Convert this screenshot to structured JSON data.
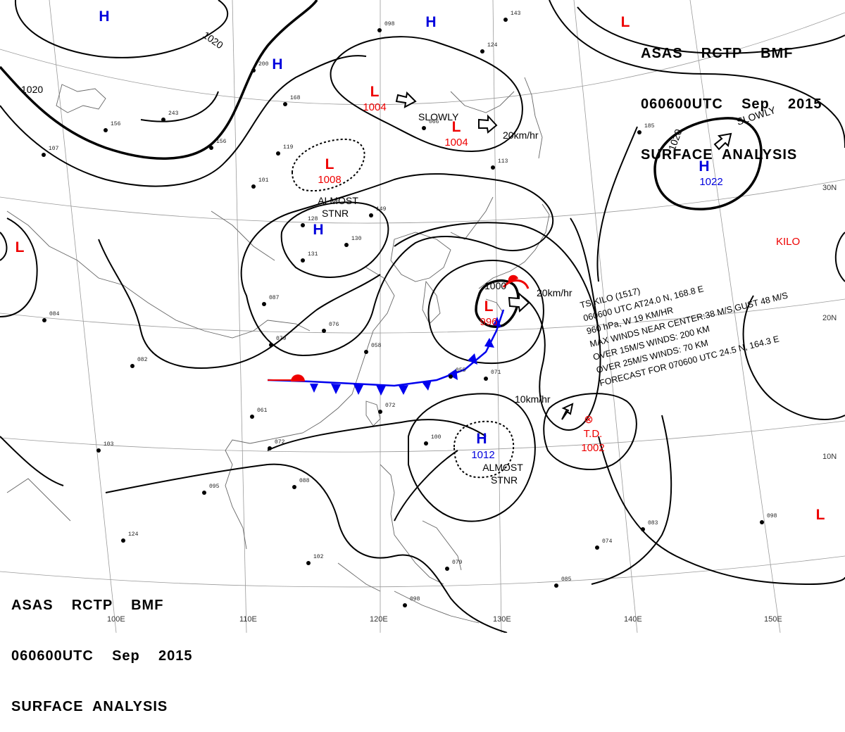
{
  "header": {
    "line1": "ASAS    RCTP    BMF",
    "line2": "060600UTC    Sep    2015",
    "line3": "SURFACE  ANALYSIS"
  },
  "longitude_labels": [
    "100E",
    "110E",
    "120E",
    "130E",
    "140E",
    "150E"
  ],
  "latitude_labels": [
    "30N",
    "20N",
    "10N"
  ],
  "isobar_labels": [
    "1020",
    "1020",
    "1020",
    "1000"
  ],
  "pressure_centers": [
    {
      "type": "H",
      "value": ""
    },
    {
      "type": "H",
      "value": ""
    },
    {
      "type": "H",
      "value": ""
    },
    {
      "type": "L",
      "value": "1004"
    },
    {
      "type": "L",
      "value": "1004"
    },
    {
      "type": "L",
      "value": "1008"
    },
    {
      "type": "H",
      "value": ""
    },
    {
      "type": "H",
      "value": "1022"
    },
    {
      "type": "L",
      "value": ""
    },
    {
      "type": "L",
      "value": ""
    },
    {
      "type": "L",
      "value": "996"
    },
    {
      "type": "H",
      "value": "1012"
    },
    {
      "type": "L",
      "value": ""
    }
  ],
  "depression": {
    "label": "T.D.",
    "value": "1002"
  },
  "storm_name": "KILO",
  "movement_labels": [
    "SLOWLY",
    "20km/hr",
    "SLOWLY",
    "20km/hr",
    "10km/hr"
  ],
  "stationary_labels": [
    {
      "line1": "ALMOST",
      "line2": "STNR"
    },
    {
      "line1": "ALMOST",
      "line2": "STNR"
    }
  ],
  "storm_info": [
    "TS  KILO  (1517)",
    "060600  UTC  AT24.0 N, 168.8 E",
    "960  hPa,  W  19 KM/HR",
    "MAX WINDS NEAR CENTER:38 M/S,GUST 48 M/S",
    "OVER 15M/S WINDS: 200 KM",
    "OVER 25M/S WINDS: 70 KM",
    "FORECAST FOR 070600 UTC 24.5 N, 164.3 E"
  ],
  "station_labels": [
    "098",
    "143",
    "124",
    "185",
    "156",
    "113",
    "119",
    "072",
    "061",
    "103",
    "082",
    "084",
    "087",
    "079",
    "076",
    "058",
    "055",
    "071",
    "100",
    "088",
    "095",
    "124",
    "102",
    "098",
    "079",
    "085",
    "074",
    "083",
    "098",
    "066",
    "101",
    "149",
    "128",
    "131",
    "130",
    "200",
    "243",
    "168",
    "156",
    "107",
    "072"
  ],
  "colors": {
    "high": "#0000dd",
    "low": "#ee0000",
    "isobar": "#000000",
    "grid": "#9a9a9a",
    "front_cold": "#0000ee",
    "front_warm": "#ee0000"
  }
}
